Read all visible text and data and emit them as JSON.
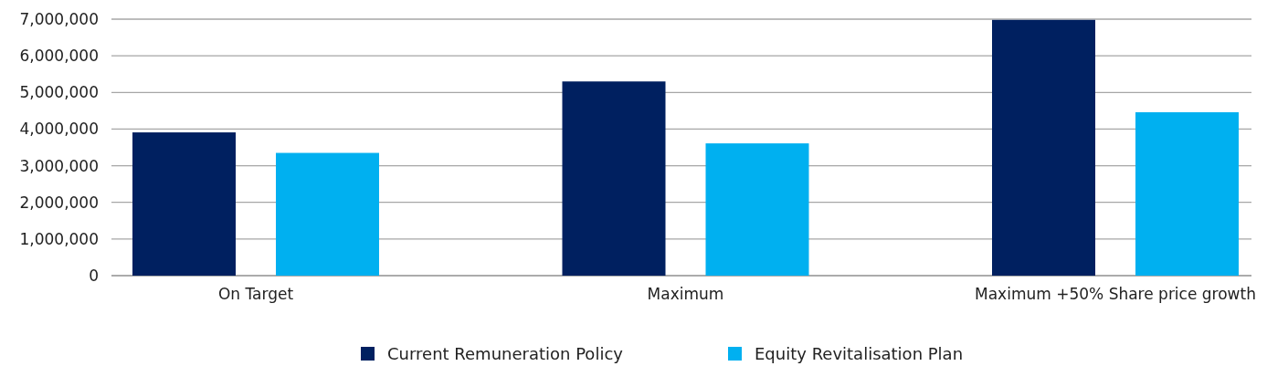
{
  "chart_data": {
    "type": "bar",
    "categories": [
      "On Target",
      "Maximum",
      "Maximum +50% Share price growth"
    ],
    "series": [
      {
        "name": "Current Remuneration Policy",
        "color": "#002060",
        "values": [
          3910000,
          5300000,
          6980000
        ]
      },
      {
        "name": "Equity Revitalisation Plan",
        "color": "#00b0f0",
        "values": [
          3350000,
          3610000,
          4460000
        ]
      }
    ],
    "ylim": [
      0,
      7000000
    ],
    "yticks": [
      {
        "value": 0,
        "label": "0"
      },
      {
        "value": 1000000,
        "label": "1,000,000"
      },
      {
        "value": 2000000,
        "label": "2,000,000"
      },
      {
        "value": 3000000,
        "label": "3,000,000"
      },
      {
        "value": 4000000,
        "label": "4,000,000"
      },
      {
        "value": 5000000,
        "label": "5,000,000"
      },
      {
        "value": 6000000,
        "label": "6,000,000"
      },
      {
        "value": 7000000,
        "label": "7,000,000"
      }
    ],
    "grid": "y",
    "legend": "bottom"
  }
}
